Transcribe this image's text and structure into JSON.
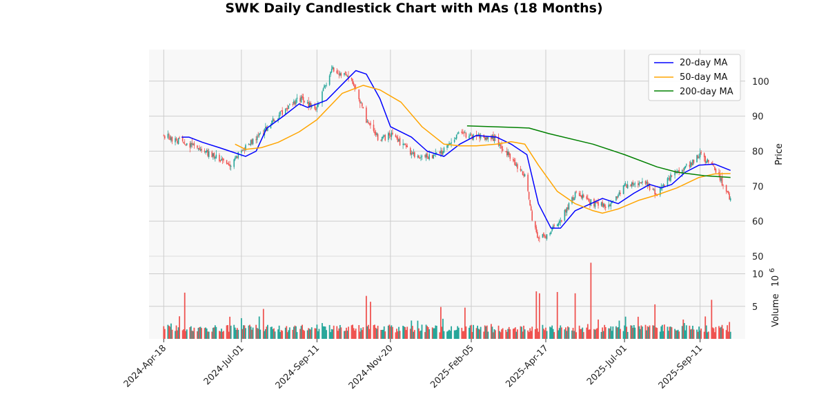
{
  "chart_data": {
    "type": "candlestick",
    "title": "SWK Daily Candlestick Chart with MAs (18 Months)",
    "ylabel": "Price",
    "volume_label": "Volume",
    "volume_exponent_base": "10",
    "volume_exponent_power": "6",
    "x_tick_labels": [
      "2024-Apr-18",
      "2024-Jul-01",
      "2024-Sep-11",
      "2024-Nov-20",
      "2025-Feb-05",
      "2025-Apr-17",
      "2025-Jul-01",
      "2025-Sep-11"
    ],
    "price_ticks": [
      "50",
      "60",
      "70",
      "80",
      "90",
      "100"
    ],
    "volume_ticks": [
      "5",
      "10"
    ],
    "price_ylim": [
      50,
      109
    ],
    "volume_ylim": [
      0,
      12
    ],
    "grid": true,
    "legend_position": "top-right",
    "colors": {
      "up": "#26a69a",
      "down": "#ef5350",
      "ma20": "#0000ff",
      "ma50": "#ffa500",
      "ma200": "#008000",
      "panel_bg": "#f8f8f8",
      "grid": "#cccccc"
    },
    "anchors": {
      "2024-Apr-18": 84.5,
      "2024-May-20": 81,
      "2024-Jun-20": 76,
      "2024-Jul-01": 80,
      "2024-Jul-20": 85,
      "2024-Aug-05": 90,
      "2024-Aug-25": 95,
      "2024-Sep-11": 92,
      "2024-Sep-25": 104,
      "2024-Oct-15": 100,
      "2024-Oct-28": 89,
      "2024-Nov-10": 83,
      "2024-Nov-20": 85,
      "2024-Dec-15": 78,
      "2025-Jan-05": 79,
      "2025-Jan-25": 85,
      "2025-Feb-05": 84,
      "2025-Feb-25": 84,
      "2025-Mar-10": 80,
      "2025-Mar-28": 73,
      "2025-Apr-04": 61,
      "2025-Apr-10": 55,
      "2025-Apr-17": 56,
      "2025-May-01": 60,
      "2025-May-15": 68,
      "2025-Jun-01": 65,
      "2025-Jun-15": 64,
      "2025-Jul-01": 70,
      "2025-Jul-20": 71,
      "2025-Aug-01": 68,
      "2025-Aug-15": 73,
      "2025-Sep-01": 76,
      "2025-Sep-11": 79,
      "2025-Sep-25": 75,
      "2025-Oct-10": 66.5
    },
    "volume_spikes": {
      "2024-May-08": 7.1,
      "2024-Jun-20": 3.4,
      "2024-Jul-22": 4.6,
      "2024-Oct-28": 6.6,
      "2024-Nov-01": 5.7,
      "2025-Jan-07": 4.9,
      "2025-Jan-30": 4.8,
      "2025-Apr-08": 7.3,
      "2025-Apr-11": 7.0,
      "2025-Apr-28": 7.2,
      "2025-May-15": 7.0,
      "2025-May-30": 11.7,
      "2025-Jul-30": 5.3,
      "2025-Sep-22": 6.0
    },
    "ma20": [
      [
        "2024-May-05",
        84
      ],
      [
        "2024-May-12",
        84
      ],
      [
        "2024-May-25",
        82.5
      ],
      [
        "2024-Jun-10",
        81
      ],
      [
        "2024-Jun-25",
        79.5
      ],
      [
        "2024-Jul-05",
        78.5
      ],
      [
        "2024-Jul-15",
        80
      ],
      [
        "2024-Jul-25",
        86.5
      ],
      [
        "2024-Aug-10",
        90
      ],
      [
        "2024-Aug-25",
        93.5
      ],
      [
        "2024-Sep-02",
        92.5
      ],
      [
        "2024-Sep-20",
        94.5
      ],
      [
        "2024-Oct-08",
        100
      ],
      [
        "2024-Oct-18",
        103
      ],
      [
        "2024-Oct-28",
        102
      ],
      [
        "2024-Nov-10",
        95
      ],
      [
        "2024-Nov-20",
        87
      ],
      [
        "2024-Dec-10",
        84
      ],
      [
        "2024-Dec-25",
        80
      ],
      [
        "2025-Jan-10",
        78.5
      ],
      [
        "2025-Jan-25",
        82
      ],
      [
        "2025-Feb-10",
        84.5
      ],
      [
        "2025-Mar-01",
        84
      ],
      [
        "2025-Mar-15",
        82
      ],
      [
        "2025-Mar-30",
        79
      ],
      [
        "2025-Apr-10",
        65
      ],
      [
        "2025-Apr-22",
        58
      ],
      [
        "2025-May-01",
        58
      ],
      [
        "2025-May-15",
        63
      ],
      [
        "2025-May-30",
        65
      ],
      [
        "2025-Jun-10",
        66.5
      ],
      [
        "2025-Jun-25",
        65
      ],
      [
        "2025-Jul-10",
        68
      ],
      [
        "2025-Jul-25",
        70.5
      ],
      [
        "2025-Aug-05",
        69.5
      ],
      [
        "2025-Aug-15",
        70.5
      ],
      [
        "2025-Aug-28",
        74
      ],
      [
        "2025-Sep-10",
        76
      ],
      [
        "2025-Sep-25",
        76.3
      ],
      [
        "2025-Oct-10",
        74.5
      ]
    ],
    "ma50": [
      [
        "2024-Jun-25",
        82
      ],
      [
        "2024-Jul-05",
        80.5
      ],
      [
        "2024-Jul-20",
        81
      ],
      [
        "2024-Aug-05",
        82.5
      ],
      [
        "2024-Aug-25",
        85.5
      ],
      [
        "2024-Sep-11",
        89
      ],
      [
        "2024-Oct-05",
        96.5
      ],
      [
        "2024-Oct-25",
        98.8
      ],
      [
        "2024-Nov-10",
        97.5
      ],
      [
        "2024-Nov-30",
        94
      ],
      [
        "2024-Dec-20",
        87
      ],
      [
        "2025-Jan-10",
        82
      ],
      [
        "2025-Jan-25",
        81.5
      ],
      [
        "2025-Feb-10",
        81.5
      ],
      [
        "2025-Mar-01",
        82
      ],
      [
        "2025-Mar-15",
        82.7
      ],
      [
        "2025-Mar-28",
        82
      ],
      [
        "2025-Apr-10",
        76
      ],
      [
        "2025-Apr-28",
        68.5
      ],
      [
        "2025-May-15",
        65
      ],
      [
        "2025-Jun-01",
        63
      ],
      [
        "2025-Jun-10",
        62.3
      ],
      [
        "2025-Jun-25",
        63.5
      ],
      [
        "2025-Jul-15",
        66
      ],
      [
        "2025-Aug-01",
        67.5
      ],
      [
        "2025-Aug-20",
        69.5
      ],
      [
        "2025-Sep-10",
        72.5
      ],
      [
        "2025-Sep-25",
        73.5
      ],
      [
        "2025-Oct-10",
        73.6
      ]
    ],
    "ma200": [
      [
        "2025-Feb-01",
        87.2
      ],
      [
        "2025-Mar-15",
        86.8
      ],
      [
        "2025-Apr-01",
        86.6
      ],
      [
        "2025-Apr-20",
        85
      ],
      [
        "2025-Jun-01",
        82
      ],
      [
        "2025-Jul-01",
        79
      ],
      [
        "2025-Aug-01",
        75.5
      ],
      [
        "2025-Aug-20",
        74
      ],
      [
        "2025-Sep-15",
        73
      ],
      [
        "2025-Oct-10",
        72.5
      ]
    ],
    "legend": [
      {
        "key": "ma20",
        "label": "20-day MA"
      },
      {
        "key": "ma50",
        "label": "50-day MA"
      },
      {
        "key": "ma200",
        "label": "200-day MA"
      }
    ]
  }
}
